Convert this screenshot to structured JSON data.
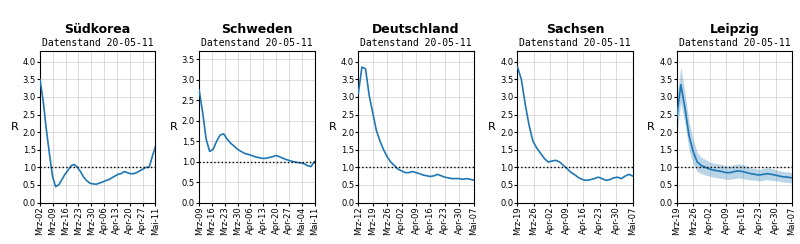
{
  "chart_data": [
    {
      "type": "line",
      "title": "Südkorea",
      "subtitle": "Datenstand 20-05-11",
      "ylabel": "R",
      "x_tick_labels": [
        "Mrz-02",
        "Mrz-09",
        "Mrz-16",
        "Mrz-23",
        "Mrz-30",
        "Apr-06",
        "Apr-13",
        "Apr-20",
        "Apr-27",
        "Mai-11"
      ],
      "xlim": [
        0,
        37
      ],
      "ylim": [
        0.0,
        4.3
      ],
      "yticks": [
        {
          "value": 0.0,
          "label": "0.0"
        },
        0.5,
        {
          "value": 1.0,
          "label": "1.0"
        },
        1.5,
        {
          "value": 2.0,
          "label": "2.0"
        },
        2.5,
        {
          "value": 3.0,
          "label": "3.0"
        },
        3.5,
        {
          "value": 4.0,
          "label": "4.0"
        }
      ],
      "values": [
        3.5,
        2.9,
        2.1,
        1.4,
        0.75,
        0.45,
        0.5,
        0.65,
        0.8,
        0.92,
        1.05,
        1.08,
        1.0,
        0.88,
        0.72,
        0.62,
        0.55,
        0.53,
        0.52,
        0.55,
        0.58,
        0.62,
        0.65,
        0.7,
        0.75,
        0.8,
        0.82,
        0.88,
        0.85,
        0.82,
        0.82,
        0.85,
        0.9,
        0.95,
        1.0,
        1.0,
        1.3,
        1.58
      ],
      "reference_line": 1.0,
      "grid": true
    },
    {
      "type": "line",
      "title": "Schweden",
      "subtitle": "Datenstand 20-05-11",
      "ylabel": "R",
      "x_tick_labels": [
        "Mrz-09",
        "Mrz-16",
        "Mrz-23",
        "Mrz-30",
        "Apr-06",
        "Apr-13",
        "Apr-20",
        "Apr-27",
        "Mai-04",
        "Mai-11"
      ],
      "xlim": [
        0,
        33
      ],
      "ylim": [
        0.0,
        3.7
      ],
      "yticks": [
        {
          "value": 0.0,
          "label": "0.0"
        },
        0.5,
        {
          "value": 1.0,
          "label": "1.0"
        },
        1.5,
        {
          "value": 2.0,
          "label": "2.0"
        },
        2.5,
        {
          "value": 3.0,
          "label": "3.0"
        },
        3.5
      ],
      "values": [
        2.75,
        2.2,
        1.55,
        1.25,
        1.3,
        1.5,
        1.65,
        1.68,
        1.55,
        1.45,
        1.38,
        1.3,
        1.25,
        1.2,
        1.18,
        1.15,
        1.12,
        1.1,
        1.08,
        1.08,
        1.1,
        1.12,
        1.15,
        1.12,
        1.08,
        1.05,
        1.02,
        1.0,
        0.98,
        0.97,
        0.95,
        0.9,
        0.88,
        1.0
      ],
      "reference_line": 1.0,
      "grid": true
    },
    {
      "type": "line",
      "title": "Deutschland",
      "subtitle": "Datenstand 20-05-11",
      "ylabel": "R",
      "x_tick_labels": [
        "Mrz-12",
        "Mrz-19",
        "Mrz-26",
        "Apr-02",
        "Apr-09",
        "Apr-16",
        "Apr-23",
        "Apr-30",
        "Mai-07"
      ],
      "xlim": [
        0,
        32
      ],
      "ylim": [
        0.0,
        4.3
      ],
      "yticks": [
        {
          "value": 0.0,
          "label": "0.0"
        },
        0.5,
        {
          "value": 1.0,
          "label": "1.0"
        },
        1.5,
        {
          "value": 2.0,
          "label": "2.0"
        },
        2.5,
        {
          "value": 3.0,
          "label": "3.0"
        },
        3.5,
        {
          "value": 4.0,
          "label": "4.0"
        }
      ],
      "values": [
        3.1,
        3.85,
        3.8,
        3.05,
        2.55,
        2.05,
        1.75,
        1.5,
        1.3,
        1.15,
        1.05,
        0.95,
        0.9,
        0.85,
        0.85,
        0.88,
        0.85,
        0.82,
        0.78,
        0.76,
        0.74,
        0.76,
        0.8,
        0.76,
        0.72,
        0.7,
        0.68,
        0.68,
        0.68,
        0.66,
        0.68,
        0.66,
        0.64
      ],
      "reference_line": 1.0,
      "grid": true
    },
    {
      "type": "line",
      "title": "Sachsen",
      "subtitle": "Datenstand 20-05-11",
      "ylabel": "R",
      "x_tick_labels": [
        "Mrz-19",
        "Mrz-26",
        "Apr-02",
        "Apr-09",
        "Apr-16",
        "Apr-23",
        "Apr-30",
        "Mai-07"
      ],
      "xlim": [
        0,
        30
      ],
      "ylim": [
        0.0,
        4.3
      ],
      "yticks": [
        {
          "value": 0.0,
          "label": "0.0"
        },
        0.5,
        {
          "value": 1.0,
          "label": "1.0"
        },
        1.5,
        {
          "value": 2.0,
          "label": "2.0"
        },
        2.5,
        {
          "value": 3.0,
          "label": "3.0"
        },
        3.5,
        {
          "value": 4.0,
          "label": "4.0"
        }
      ],
      "values": [
        3.85,
        3.5,
        2.8,
        2.2,
        1.75,
        1.55,
        1.4,
        1.25,
        1.15,
        1.18,
        1.2,
        1.15,
        1.05,
        0.95,
        0.85,
        0.78,
        0.7,
        0.65,
        0.63,
        0.65,
        0.68,
        0.72,
        0.68,
        0.63,
        0.65,
        0.7,
        0.72,
        0.68,
        0.75,
        0.8,
        0.75
      ],
      "reference_line": 1.0,
      "grid": true
    },
    {
      "type": "line",
      "title": "Leipzig",
      "subtitle": "Datenstand 20-05-11",
      "ylabel": "R",
      "x_tick_labels": [
        "Mrz-19",
        "Mrz-26",
        "Apr-02",
        "Apr-09",
        "Apr-16",
        "Apr-23",
        "Apr-30",
        "Mai-07"
      ],
      "xlim": [
        0,
        28
      ],
      "ylim": [
        0.0,
        4.3
      ],
      "yticks": [
        {
          "value": 0.0,
          "label": "0.0"
        },
        0.5,
        {
          "value": 1.0,
          "label": "1.0"
        },
        1.5,
        {
          "value": 2.0,
          "label": "2.0"
        },
        2.5,
        {
          "value": 3.0,
          "label": "3.0"
        },
        3.5,
        {
          "value": 4.0,
          "label": "4.0"
        }
      ],
      "values": [
        2.4,
        3.35,
        2.7,
        1.9,
        1.45,
        1.15,
        1.05,
        1.0,
        0.95,
        0.92,
        0.9,
        0.88,
        0.85,
        0.85,
        0.88,
        0.9,
        0.88,
        0.85,
        0.82,
        0.8,
        0.78,
        0.8,
        0.82,
        0.8,
        0.78,
        0.75,
        0.73,
        0.72,
        0.7
      ],
      "ci_lower": [
        1.9,
        2.85,
        2.25,
        1.5,
        1.1,
        0.88,
        0.82,
        0.78,
        0.75,
        0.72,
        0.7,
        0.68,
        0.66,
        0.66,
        0.68,
        0.7,
        0.68,
        0.66,
        0.64,
        0.63,
        0.62,
        0.63,
        0.65,
        0.63,
        0.62,
        0.6,
        0.58,
        0.57,
        0.56
      ],
      "ci_upper": [
        2.9,
        3.85,
        3.15,
        2.3,
        1.8,
        1.42,
        1.28,
        1.22,
        1.15,
        1.12,
        1.1,
        1.08,
        1.04,
        1.04,
        1.08,
        1.1,
        1.08,
        1.04,
        0.98,
        0.97,
        0.94,
        0.97,
        0.99,
        0.97,
        0.94,
        0.9,
        0.88,
        0.87,
        0.84
      ],
      "reference_line": 1.0,
      "grid": true
    }
  ]
}
